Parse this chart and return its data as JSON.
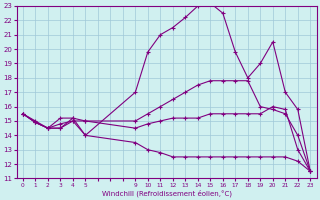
{
  "xlabel": "Windchill (Refroidissement éolien,°C)",
  "bg_color": "#d0f0f0",
  "line_color": "#800080",
  "grid_color": "#a0c8d8",
  "xtick_labels": [
    "0",
    "1",
    "2",
    "3",
    "4",
    "5",
    "",
    "",
    "",
    "9",
    "10",
    "11",
    "12",
    "13",
    "14",
    "15",
    "16",
    "17",
    "18",
    "19",
    "20",
    "21",
    "22",
    "23"
  ],
  "xtick_positions": [
    0,
    1,
    2,
    3,
    4,
    5,
    6,
    7,
    8,
    9,
    10,
    11,
    12,
    13,
    14,
    15,
    16,
    17,
    18,
    19,
    20,
    21,
    22,
    23
  ],
  "yticks": [
    11,
    12,
    13,
    14,
    15,
    16,
    17,
    18,
    19,
    20,
    21,
    22,
    23
  ],
  "series": [
    {
      "xi": [
        0,
        1,
        2,
        3,
        4,
        5,
        9,
        10,
        11,
        12,
        13,
        14,
        15,
        16,
        17,
        18,
        19,
        20,
        21,
        22,
        23
      ],
      "y": [
        15.5,
        15.0,
        14.5,
        15.2,
        15.2,
        14.0,
        17.0,
        19.8,
        21.0,
        21.5,
        22.2,
        23.0,
        23.2,
        22.5,
        19.8,
        18.0,
        19.0,
        20.5,
        17.0,
        15.8,
        11.5
      ]
    },
    {
      "xi": [
        0,
        1,
        2,
        3,
        4,
        5,
        9,
        10,
        11,
        12,
        13,
        14,
        15,
        16,
        17,
        18,
        19,
        20,
        21,
        22,
        23
      ],
      "y": [
        15.5,
        14.9,
        14.5,
        14.5,
        15.2,
        15.0,
        15.0,
        15.5,
        16.0,
        16.5,
        17.0,
        17.5,
        17.8,
        17.8,
        17.8,
        17.8,
        16.0,
        15.8,
        15.5,
        14.0,
        11.5
      ]
    },
    {
      "xi": [
        0,
        1,
        2,
        3,
        4,
        5,
        9,
        10,
        11,
        12,
        13,
        14,
        15,
        16,
        17,
        18,
        19,
        20,
        21,
        22,
        23
      ],
      "y": [
        15.5,
        14.9,
        14.5,
        14.8,
        15.0,
        15.0,
        14.5,
        14.8,
        15.0,
        15.2,
        15.2,
        15.2,
        15.5,
        15.5,
        15.5,
        15.5,
        15.5,
        16.0,
        15.8,
        13.0,
        11.5
      ]
    },
    {
      "xi": [
        0,
        1,
        2,
        3,
        4,
        5,
        9,
        10,
        11,
        12,
        13,
        14,
        15,
        16,
        17,
        18,
        19,
        20,
        21,
        22,
        23
      ],
      "y": [
        15.5,
        14.9,
        14.5,
        14.5,
        15.0,
        14.0,
        13.5,
        13.0,
        12.8,
        12.5,
        12.5,
        12.5,
        12.5,
        12.5,
        12.5,
        12.5,
        12.5,
        12.5,
        12.5,
        12.2,
        11.5
      ]
    }
  ],
  "xlim": [
    -0.5,
    23.5
  ],
  "ylim": [
    11,
    23
  ]
}
